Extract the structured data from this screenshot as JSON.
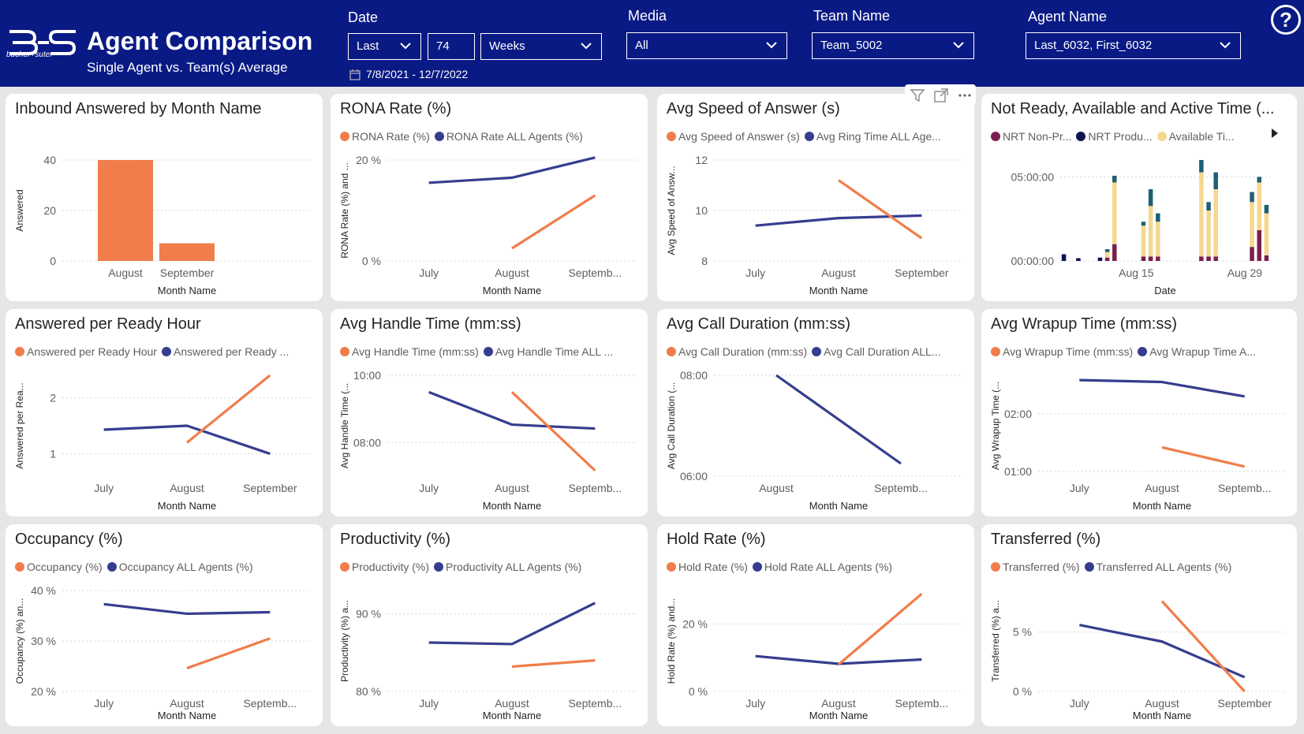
{
  "header": {
    "logo_text": "bucher+suter",
    "title": "Agent Comparison",
    "subtitle": "Single Agent vs. Team(s) Average",
    "help": "?"
  },
  "filters": {
    "date_label": "Date",
    "date_mode": "Last",
    "date_count": "74",
    "date_unit": "Weeks",
    "date_range": "7/8/2021 - 12/7/2022",
    "media_label": "Media",
    "media_value": "All",
    "team_label": "Team Name",
    "team_value": "Team_5002",
    "agent_label": "Agent Name",
    "agent_value": "Last_6032, First_6032"
  },
  "colors": {
    "orange": "#f07d4a",
    "navy": "#363d8f",
    "maroon": "#7a1f4d",
    "dark": "#0e1450",
    "yellow": "#f5d78e",
    "teal": "#1e5f75"
  },
  "chart_data": [
    {
      "id": "c1",
      "type": "bar",
      "title": "Inbound Answered by Month Name",
      "categories": [
        "August",
        "September"
      ],
      "values": [
        40,
        7
      ],
      "xlabel": "Month Name",
      "ylabel": "Answered",
      "ylim": [
        0,
        40
      ],
      "yticks": [
        0,
        20,
        40
      ],
      "ytick_labels": [
        "0",
        "20",
        "40"
      ],
      "legend": []
    },
    {
      "id": "c2",
      "type": "line",
      "title": "RONA Rate (%)",
      "categories": [
        "July",
        "August",
        "Septemb..."
      ],
      "series": [
        {
          "name": "RONA Rate (%)",
          "color": "orange",
          "values": [
            null,
            2.5,
            13
          ]
        },
        {
          "name": "RONA Rate ALL Agents (%)",
          "color": "navy",
          "values": [
            15.5,
            16.5,
            20.5
          ]
        }
      ],
      "xlabel": "Month Name",
      "ylabel": "RONA Rate (%) and ...",
      "ylim": [
        0,
        20
      ],
      "yticks": [
        0,
        20
      ],
      "ytick_labels": [
        "0 %",
        "20 %"
      ]
    },
    {
      "id": "c3",
      "type": "line",
      "title": "Avg Speed of Answer (s)",
      "categories": [
        "July",
        "August",
        "September"
      ],
      "series": [
        {
          "name": "Avg Speed of Answer (s)",
          "color": "orange",
          "values": [
            null,
            11.2,
            8.9
          ]
        },
        {
          "name": "Avg Ring Time ALL Age...",
          "color": "navy",
          "values": [
            9.4,
            9.7,
            9.8
          ]
        }
      ],
      "xlabel": "Month Name",
      "ylabel": "Avg Speed of Answ...",
      "ylim": [
        8,
        12
      ],
      "yticks": [
        8,
        10,
        12
      ],
      "ytick_labels": [
        "8",
        "10",
        "12"
      ]
    },
    {
      "id": "c4",
      "type": "bar",
      "title": "Not Ready, Available and Active Time (...",
      "stacked": true,
      "legend_items": [
        {
          "name": "NRT Non-Pr...",
          "color": "maroon"
        },
        {
          "name": "NRT Produ...",
          "color": "dark"
        },
        {
          "name": "Available Ti...",
          "color": "yellow"
        }
      ],
      "series_colors": [
        "maroon",
        "dark",
        "yellow",
        "teal"
      ],
      "stacks": [
        [
          0,
          1.2,
          0,
          0
        ],
        [
          0,
          0,
          0,
          0
        ],
        [
          0,
          0.5,
          0,
          0
        ],
        [
          0,
          0,
          0,
          0
        ],
        [
          0,
          0,
          0,
          0
        ],
        [
          0,
          0.6,
          0,
          0
        ],
        [
          0.6,
          0,
          1.0,
          0.5
        ],
        [
          3.0,
          0,
          11.0,
          1.2
        ],
        [
          0,
          0,
          0,
          0
        ],
        [
          0,
          0,
          0,
          0
        ],
        [
          0,
          0,
          0,
          0
        ],
        [
          0.8,
          0,
          5.5,
          0.7
        ],
        [
          0.8,
          0,
          9.0,
          3.0
        ],
        [
          0.8,
          0,
          6.2,
          1.5
        ],
        [
          0,
          0,
          0,
          0
        ],
        [
          0,
          0,
          0,
          0
        ],
        [
          0,
          0,
          0,
          0
        ],
        [
          0,
          0,
          0,
          0
        ],
        [
          0,
          0,
          0,
          0
        ],
        [
          0.8,
          0,
          15.0,
          2.2
        ],
        [
          0.8,
          0,
          8.2,
          1.5
        ],
        [
          0.8,
          0,
          12.0,
          3.0
        ],
        [
          0,
          0,
          0,
          0
        ],
        [
          0,
          0,
          0,
          0
        ],
        [
          0,
          0,
          0,
          0
        ],
        [
          0,
          0,
          0,
          0
        ],
        [
          2.5,
          0,
          8.0,
          1.8
        ],
        [
          5.5,
          0,
          8.5,
          1.0
        ],
        [
          1.0,
          0,
          7.5,
          1.5
        ]
      ],
      "xticks": [
        "Aug 15",
        "Aug 29"
      ],
      "xtick_index": [
        10,
        25
      ],
      "xlabel": "Date",
      "ylabel": "",
      "ylim": [
        0,
        18
      ],
      "yticks": [
        0,
        15
      ],
      "ytick_labels": [
        "00:00:00",
        "05:00:00"
      ]
    },
    {
      "id": "c5",
      "type": "line",
      "title": "Answered per Ready Hour",
      "categories": [
        "July",
        "August",
        "September"
      ],
      "series": [
        {
          "name": "Answered per Ready Hour",
          "color": "orange",
          "values": [
            null,
            1.2,
            2.4
          ]
        },
        {
          "name": "Answered per Ready ...",
          "color": "navy",
          "values": [
            1.43,
            1.5,
            1.0
          ]
        }
      ],
      "xlabel": "Month Name",
      "ylabel": "Answered per Rea...",
      "ylim": [
        0.6,
        2.4
      ],
      "yticks": [
        1,
        2
      ],
      "ytick_labels": [
        "1",
        "2"
      ]
    },
    {
      "id": "c6",
      "type": "line",
      "title": "Avg Handle Time (mm:ss)",
      "categories": [
        "July",
        "August",
        "Septemb..."
      ],
      "series": [
        {
          "name": "Avg Handle Time (mm:ss)",
          "color": "orange",
          "values": [
            null,
            570,
            430
          ]
        },
        {
          "name": "Avg Handle Time ALL ...",
          "color": "navy",
          "values": [
            570,
            512,
            505
          ]
        }
      ],
      "xlabel": "Month Name",
      "ylabel": "Avg Handle Time (...",
      "ylim": [
        420,
        600
      ],
      "yticks": [
        480,
        600
      ],
      "ytick_labels": [
        "08:00",
        "10:00"
      ]
    },
    {
      "id": "c7",
      "type": "line",
      "title": "Avg Call Duration (mm:ss)",
      "categories": [
        "August",
        "Septemb..."
      ],
      "series": [
        {
          "name": "Avg Call Duration (mm:ss)",
          "color": "orange",
          "values": [
            null,
            null
          ]
        },
        {
          "name": "Avg Call Duration ALL...",
          "color": "navy",
          "values": [
            480,
            375
          ]
        }
      ],
      "xlabel": "Month Name",
      "ylabel": "Avg Call Duration (...",
      "ylim": [
        360,
        480
      ],
      "yticks": [
        360,
        480
      ],
      "ytick_labels": [
        "06:00",
        "08:00"
      ]
    },
    {
      "id": "c8",
      "type": "line",
      "title": "Avg Wrapup Time (mm:ss)",
      "categories": [
        "July",
        "August",
        "Septemb..."
      ],
      "series": [
        {
          "name": "Avg Wrapup Time (mm:ss)",
          "color": "orange",
          "values": [
            null,
            85,
            65
          ]
        },
        {
          "name": "Avg Wrapup Time A...",
          "color": "navy",
          "values": [
            155,
            153,
            138
          ]
        }
      ],
      "xlabel": "Month Name",
      "ylabel": "Avg Wrapup Time (...",
      "ylim": [
        55,
        160
      ],
      "yticks": [
        60,
        120
      ],
      "ytick_labels": [
        "01:00",
        "02:00"
      ]
    },
    {
      "id": "c9",
      "type": "line",
      "title": "Occupancy (%)",
      "categories": [
        "July",
        "August",
        "Septemb..."
      ],
      "series": [
        {
          "name": "Occupancy (%)",
          "color": "orange",
          "values": [
            null,
            24.6,
            30.5
          ]
        },
        {
          "name": "Occupancy ALL Agents (%)",
          "color": "navy",
          "values": [
            37.3,
            35.4,
            35.7
          ]
        }
      ],
      "xlabel": "Month Name",
      "ylabel": "Occupancy (%) an...",
      "ylim": [
        20,
        40
      ],
      "yticks": [
        20,
        30,
        40
      ],
      "ytick_labels": [
        "20 %",
        "30 %",
        "40 %"
      ]
    },
    {
      "id": "c10",
      "type": "line",
      "title": "Productivity (%)",
      "categories": [
        "July",
        "August",
        "Septemb..."
      ],
      "series": [
        {
          "name": "Productivity (%)",
          "color": "orange",
          "values": [
            null,
            83.2,
            84
          ]
        },
        {
          "name": "Productivity ALL Agents (%)",
          "color": "navy",
          "values": [
            86.3,
            86.1,
            91.4
          ]
        }
      ],
      "xlabel": "Month Name",
      "ylabel": "Productivity (%) a...",
      "ylim": [
        80,
        93
      ],
      "yticks": [
        80,
        90
      ],
      "ytick_labels": [
        "80 %",
        "90 %"
      ]
    },
    {
      "id": "c11",
      "type": "line",
      "title": "Hold Rate (%)",
      "categories": [
        "July",
        "August",
        "Septemb..."
      ],
      "series": [
        {
          "name": "Hold Rate (%)",
          "color": "orange",
          "values": [
            null,
            8,
            29
          ]
        },
        {
          "name": "Hold Rate ALL Agents (%)",
          "color": "navy",
          "values": [
            10.5,
            8.2,
            9.5
          ]
        }
      ],
      "xlabel": "Month Name",
      "ylabel": "Hold Rate (%) and...",
      "ylim": [
        0,
        30
      ],
      "yticks": [
        0,
        20
      ],
      "ytick_labels": [
        "0 %",
        "20 %"
      ]
    },
    {
      "id": "c12",
      "type": "line",
      "title": "Transferred (%)",
      "categories": [
        "July",
        "August",
        "September"
      ],
      "series": [
        {
          "name": "Transferred (%)",
          "color": "orange",
          "values": [
            null,
            7.6,
            0
          ]
        },
        {
          "name": "Transferred ALL Agents (%)",
          "color": "navy",
          "values": [
            5.6,
            4.2,
            1.2
          ]
        }
      ],
      "xlabel": "Month Name",
      "ylabel": "Transferred (%) a...",
      "ylim": [
        0,
        8.5
      ],
      "yticks": [
        0,
        5
      ],
      "ytick_labels": [
        "0 %",
        "5 %"
      ]
    }
  ]
}
